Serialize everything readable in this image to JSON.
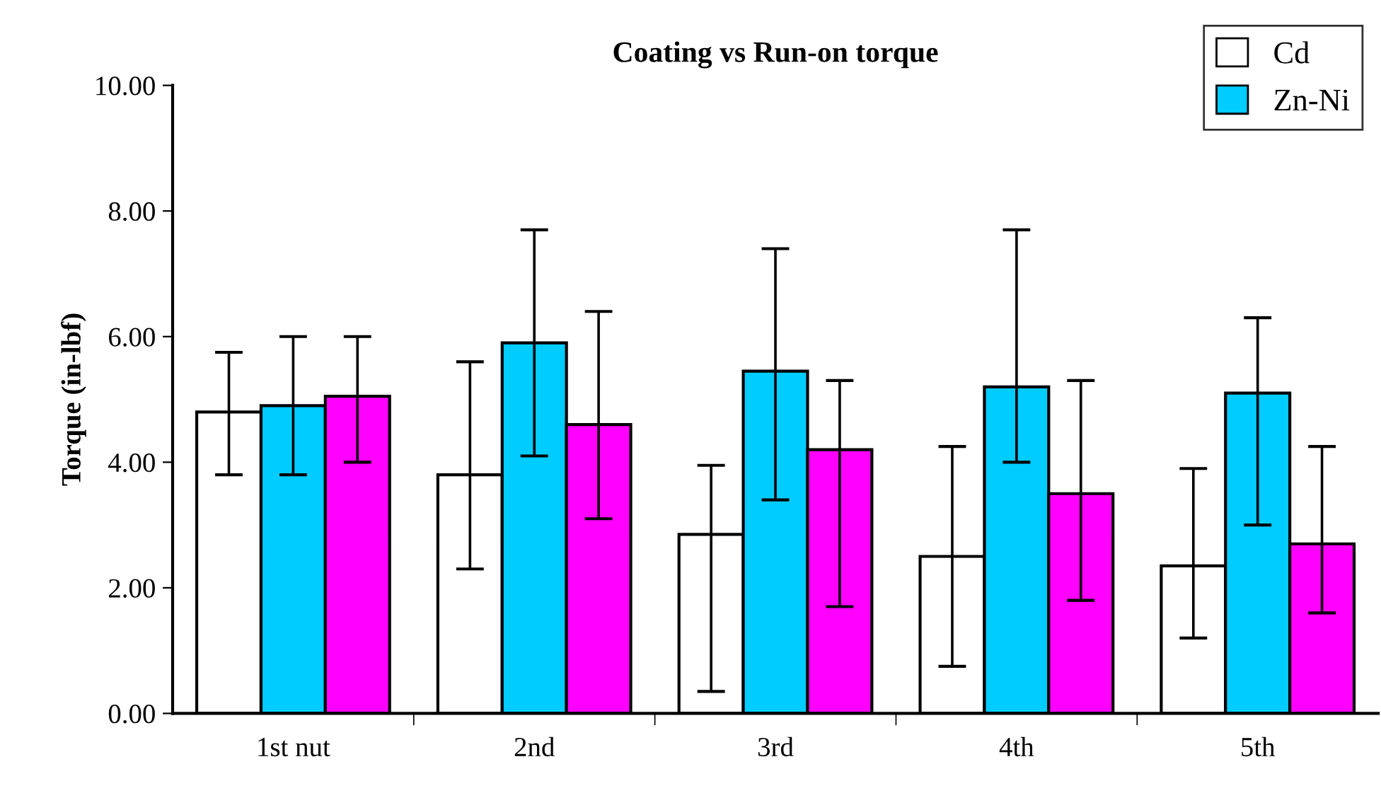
{
  "chart_data": {
    "type": "bar",
    "title": "Coating vs Run-on torque",
    "ylabel": "Torque (in-lbf)",
    "categories": [
      "1st nut",
      "2nd",
      "3rd",
      "4th",
      "5th"
    ],
    "series": [
      {
        "name": "Cd",
        "color": "#ffffff",
        "values": [
          4.8,
          3.8,
          2.85,
          2.5,
          2.35
        ],
        "errors": [
          [
            3.8,
            5.75
          ],
          [
            2.3,
            5.6
          ],
          [
            0.35,
            3.95
          ],
          [
            0.75,
            4.25
          ],
          [
            1.2,
            3.9
          ]
        ]
      },
      {
        "name": "Zn-Ni",
        "color": "#00ccff",
        "values": [
          4.9,
          5.9,
          5.45,
          5.2,
          5.1
        ],
        "errors": [
          [
            3.8,
            6.0
          ],
          [
            4.1,
            7.7
          ],
          [
            3.4,
            7.4
          ],
          [
            4.0,
            7.7
          ],
          [
            3.0,
            6.3
          ]
        ]
      },
      {
        "color": "#ff00ff",
        "values": [
          5.05,
          4.6,
          4.2,
          3.5,
          2.7
        ],
        "errors": [
          [
            4.0,
            6.0
          ],
          [
            3.1,
            6.4
          ],
          [
            1.7,
            5.3
          ],
          [
            1.8,
            5.3
          ],
          [
            1.6,
            4.25
          ]
        ]
      }
    ],
    "ylim": [
      0,
      10
    ],
    "yticks": [
      {
        "value": 0,
        "label": "0.00"
      },
      {
        "value": 2,
        "label": "2.00"
      },
      {
        "value": 4,
        "label": "4.00"
      },
      {
        "value": 6,
        "label": "6.00"
      },
      {
        "value": 8,
        "label": "8.00"
      },
      {
        "value": 10,
        "label": "10.00"
      }
    ],
    "grid": false,
    "legend": "top right"
  }
}
